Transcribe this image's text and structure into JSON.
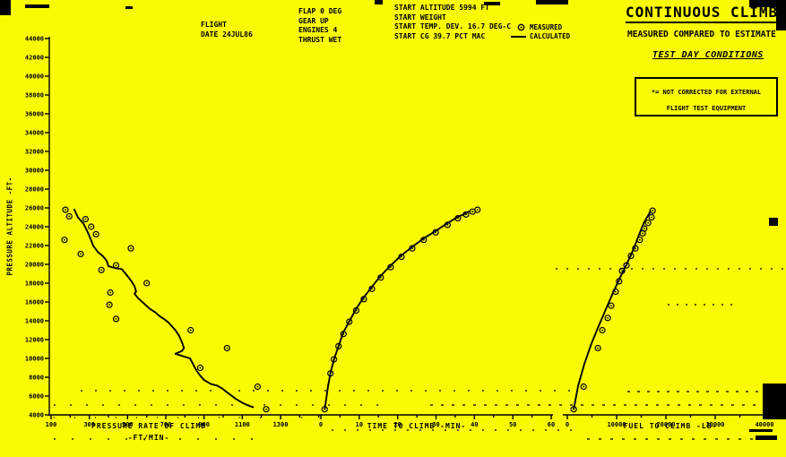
{
  "colors": {
    "background": "#FAFA00",
    "ink": "#000000"
  },
  "header": {
    "title": "CONTINUOUS CLIMB",
    "subtitle": "MEASURED COMPARED TO ESTIMATE",
    "conditions": "TEST DAY CONDITIONS",
    "note_line1": "*= NOT CORRECTED FOR EXTERNAL",
    "note_line2": "FLIGHT TEST EQUIPMENT",
    "flight_block": "FLIGHT\nDATE 24JUL86",
    "config_block": "FLAP 0 DEG\nGEAR UP\nENGINES 4\nTHRUST WET",
    "start_block": "START ALTITUDE 5994 FT\nSTART WEIGHT\nSTART TEMP. DEV. 16.7 DEG-C\nSTART CG 39.7 PCT MAC",
    "legend": {
      "measured_icon": "circled-dot-marker",
      "calculated_icon": "solid-line-marker"
    }
  },
  "chart_data": {
    "type": "line",
    "title": "CONTINUOUS CLIMB - MEASURED COMPARED TO ESTIMATE - TEST DAY CONDITIONS",
    "legend_position": "top",
    "grid": false,
    "y_axis": {
      "label": "PRESSURE ALTITUDE -FT-",
      "range": [
        4000,
        44000
      ],
      "ticks": [
        4000,
        6000,
        8000,
        10000,
        12000,
        14000,
        16000,
        18000,
        20000,
        22000,
        24000,
        26000,
        28000,
        30000,
        32000,
        34000,
        36000,
        38000,
        40000,
        42000,
        44000
      ]
    },
    "charts": [
      {
        "x_axis": {
          "label": "PRESSURE RATE OF CLIMB",
          "unit": "-FT/MIN-",
          "range": [
            100,
            1500
          ],
          "minor_step": 100,
          "ticks": [
            100,
            300,
            500,
            700,
            900,
            1100,
            1300
          ]
        },
        "series": [
          {
            "name": "CALCULATED",
            "type": "line",
            "points": [
              [
                220,
                25900
              ],
              [
                240,
                25000
              ],
              [
                270,
                24300
              ],
              [
                290,
                23500
              ],
              [
                305,
                22800
              ],
              [
                320,
                22000
              ],
              [
                345,
                21300
              ],
              [
                370,
                20900
              ],
              [
                390,
                20400
              ],
              [
                400,
                19800
              ],
              [
                435,
                19600
              ],
              [
                470,
                19500
              ],
              [
                490,
                19000
              ],
              [
                517,
                18300
              ],
              [
                536,
                17700
              ],
              [
                545,
                17100
              ],
              [
                536,
                16900
              ],
              [
                555,
                16400
              ],
              [
                583,
                15900
              ],
              [
                615,
                15300
              ],
              [
                645,
                14900
              ],
              [
                667,
                14500
              ],
              [
                690,
                14200
              ],
              [
                715,
                13800
              ],
              [
                750,
                13000
              ],
              [
                770,
                12400
              ],
              [
                785,
                11700
              ],
              [
                795,
                11100
              ],
              [
                785,
                10800
              ],
              [
                750,
                10500
              ],
              [
                795,
                10200
              ],
              [
                827,
                10000
              ],
              [
                840,
                9500
              ],
              [
                855,
                8900
              ],
              [
                875,
                8300
              ],
              [
                900,
                7700
              ],
              [
                935,
                7300
              ],
              [
                970,
                7100
              ],
              [
                995,
                6800
              ],
              [
                1020,
                6400
              ],
              [
                1040,
                6100
              ],
              [
                1065,
                5700
              ],
              [
                1100,
                5300
              ],
              [
                1130,
                5000
              ],
              [
                1160,
                4800
              ]
            ]
          },
          {
            "name": "MEASURED",
            "type": "scatter",
            "points": [
              [
                175,
                25800
              ],
              [
                195,
                25100
              ],
              [
                280,
                24800
              ],
              [
                310,
                24000
              ],
              [
                335,
                23200
              ],
              [
                170,
                22600
              ],
              [
                255,
                21100
              ],
              [
                517,
                21700
              ],
              [
                440,
                19900
              ],
              [
                363,
                19400
              ],
              [
                600,
                18000
              ],
              [
                410,
                17000
              ],
              [
                405,
                15700
              ],
              [
                440,
                14200
              ],
              [
                830,
                13000
              ],
              [
                1020,
                11100
              ],
              [
                880,
                9000
              ],
              [
                1180,
                7000
              ],
              [
                1225,
                4600
              ]
            ]
          }
        ]
      },
      {
        "x_axis": {
          "label": "TIME TO CLIMB -MIN-",
          "unit": "",
          "range": [
            0,
            60
          ],
          "minor_step": 5,
          "ticks": [
            0,
            10,
            20,
            30,
            40,
            50,
            60
          ]
        },
        "series": [
          {
            "name": "CALCULATED",
            "type": "line",
            "points": [
              [
                1,
                4600
              ],
              [
                1.4,
                5700
              ],
              [
                1.9,
                7100
              ],
              [
                2.6,
                8600
              ],
              [
                3.5,
                10000
              ],
              [
                4.7,
                11400
              ],
              [
                5.8,
                12700
              ],
              [
                7.5,
                14000
              ],
              [
                9.1,
                15200
              ],
              [
                11,
                16400
              ],
              [
                13.1,
                17500
              ],
              [
                15.4,
                18700
              ],
              [
                18,
                19800
              ],
              [
                20.8,
                20900
              ],
              [
                23.6,
                21800
              ],
              [
                26.6,
                22700
              ],
              [
                29.7,
                23500
              ],
              [
                32.7,
                24300
              ],
              [
                35.5,
                25000
              ],
              [
                37.6,
                25400
              ],
              [
                39,
                25700
              ]
            ]
          },
          {
            "name": "MEASURED",
            "type": "scatter",
            "points": [
              [
                1,
                4600
              ],
              [
                2.5,
                8400
              ],
              [
                3.4,
                9900
              ],
              [
                4.6,
                11300
              ],
              [
                5.9,
                12600
              ],
              [
                7.4,
                13900
              ],
              [
                9.2,
                15100
              ],
              [
                11.2,
                16300
              ],
              [
                13.3,
                17400
              ],
              [
                15.6,
                18600
              ],
              [
                18.2,
                19700
              ],
              [
                21,
                20800
              ],
              [
                23.8,
                21700
              ],
              [
                26.8,
                22600
              ],
              [
                29.9,
                23400
              ],
              [
                33,
                24200
              ],
              [
                35.7,
                24900
              ],
              [
                37.8,
                25300
              ],
              [
                39.5,
                25600
              ],
              [
                40.8,
                25800
              ]
            ]
          }
        ]
      },
      {
        "x_axis": {
          "label": "FUEL TO CLIMB -LB-",
          "unit": "",
          "range": [
            0,
            40500
          ],
          "minor_step": 5000,
          "ticks": [
            0,
            10000,
            20000,
            30000,
            40000
          ]
        },
        "series": [
          {
            "name": "CALCULATED",
            "type": "line",
            "points": [
              [
                1300,
                4600
              ],
              [
                2200,
                7100
              ],
              [
                3500,
                9500
              ],
              [
                4900,
                11600
              ],
              [
                6400,
                13500
              ],
              [
                7800,
                15200
              ],
              [
                9300,
                17000
              ],
              [
                10700,
                18600
              ],
              [
                12200,
                20200
              ],
              [
                13500,
                21700
              ],
              [
                14500,
                23100
              ],
              [
                15600,
                24500
              ],
              [
                16400,
                25200
              ],
              [
                16900,
                25700
              ]
            ]
          },
          {
            "name": "MEASURED",
            "type": "scatter",
            "points": [
              [
                1300,
                4600
              ],
              [
                3300,
                7000
              ],
              [
                6200,
                11100
              ],
              [
                7100,
                13000
              ],
              [
                8200,
                14300
              ],
              [
                8900,
                15600
              ],
              [
                9800,
                17100
              ],
              [
                10500,
                18200
              ],
              [
                11100,
                19300
              ],
              [
                12000,
                19900
              ],
              [
                12900,
                20900
              ],
              [
                13800,
                21700
              ],
              [
                14700,
                22600
              ],
              [
                15300,
                23300
              ],
              [
                15600,
                23800
              ],
              [
                16400,
                24400
              ],
              [
                17100,
                25000
              ],
              [
                17300,
                25700
              ]
            ]
          }
        ]
      }
    ]
  }
}
